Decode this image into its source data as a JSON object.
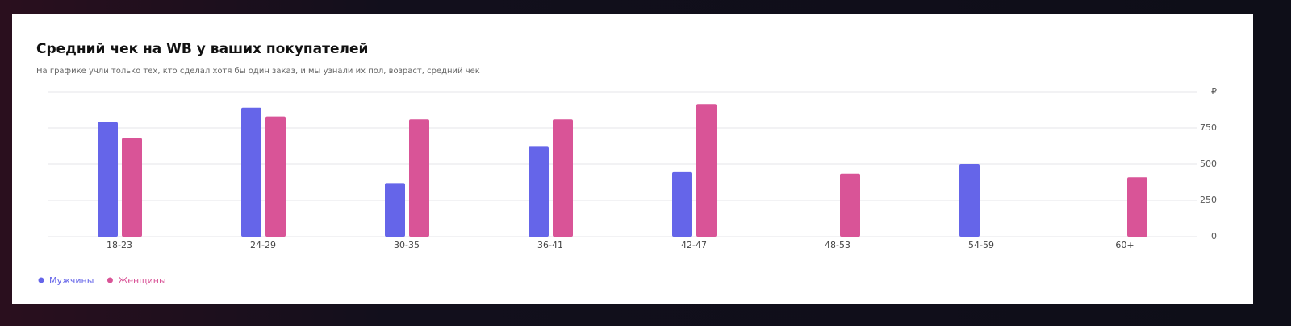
{
  "chart_data": {
    "type": "bar",
    "title": "Средний чек на WB у ваших покупателей",
    "subtitle": "На графике учли только тех, кто сделал хотя бы один заказ, и мы узнали их пол, возраст, средний чек",
    "categories": [
      "18-23",
      "24-29",
      "30-35",
      "36-41",
      "42-47",
      "48-53",
      "54-59",
      "60+"
    ],
    "series": [
      {
        "name": "Мужчины",
        "color": "#6565e9",
        "values": [
          790,
          890,
          370,
          620,
          445,
          null,
          500,
          null
        ]
      },
      {
        "name": "Женщины",
        "color": "#d95497",
        "values": [
          680,
          830,
          810,
          810,
          915,
          435,
          null,
          410
        ]
      }
    ],
    "ylim": [
      0,
      1000
    ],
    "yticks": [
      0,
      250,
      500,
      750,
      {
        "value": 1000,
        "label": "₽"
      }
    ],
    "grid": true
  }
}
